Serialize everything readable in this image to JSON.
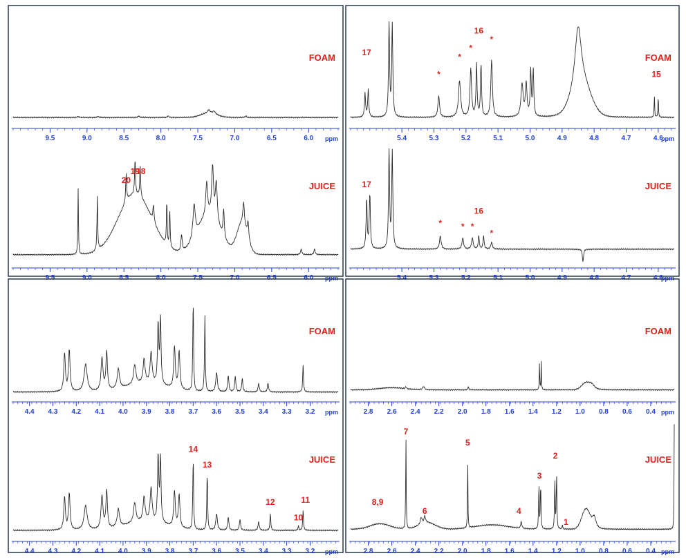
{
  "colors": {
    "spectrum": "#2b2b2b",
    "axis": "#1f3fd1",
    "label": "#e0201b",
    "frame": "#1a2a4a"
  },
  "chart_data": [
    {
      "id": "aromatic",
      "type": "line",
      "xlabel": "ppm",
      "xlim": [
        10.0,
        5.6
      ],
      "ticks": [
        9.5,
        9.0,
        8.5,
        8.0,
        7.5,
        7.0,
        6.5,
        6.0
      ],
      "tick_labels": [
        "9.5",
        "9.0",
        "8.5",
        "8.0",
        "7.5",
        "7.0",
        "6.5",
        "6.0"
      ],
      "series": [
        {
          "name": "FOAM",
          "baseline": 0.05,
          "humps": [
            {
              "x": 7.35,
              "w": 0.15,
              "h": 0.04
            }
          ],
          "peaks": [
            {
              "x": 9.12,
              "h": 0.01,
              "w": 0.01
            },
            {
              "x": 8.85,
              "h": 0.01,
              "w": 0.01
            },
            {
              "x": 8.3,
              "h": 0.015,
              "w": 0.01
            },
            {
              "x": 7.9,
              "h": 0.015,
              "w": 0.01
            },
            {
              "x": 7.35,
              "h": 0.03,
              "w": 0.02
            },
            {
              "x": 7.28,
              "h": 0.025,
              "w": 0.02
            },
            {
              "x": 6.85,
              "h": 0.015,
              "w": 0.01
            }
          ],
          "labels": []
        },
        {
          "name": "JUICE",
          "baseline": 0.07,
          "humps": [
            {
              "x": 8.35,
              "w": 0.32,
              "h": 0.55
            },
            {
              "x": 7.35,
              "w": 0.22,
              "h": 0.35
            },
            {
              "x": 6.9,
              "w": 0.1,
              "h": 0.28
            }
          ],
          "peaks": [
            {
              "x": 9.12,
              "h": 0.6,
              "w": 0.005
            },
            {
              "x": 8.86,
              "h": 0.5,
              "w": 0.006
            },
            {
              "x": 8.47,
              "h": 0.25,
              "w": 0.008
            },
            {
              "x": 8.35,
              "h": 0.32,
              "w": 0.007
            },
            {
              "x": 8.28,
              "h": 0.28,
              "w": 0.007
            },
            {
              "x": 8.1,
              "h": 0.15,
              "w": 0.01
            },
            {
              "x": 7.92,
              "h": 0.4,
              "w": 0.006
            },
            {
              "x": 7.88,
              "h": 0.35,
              "w": 0.006
            },
            {
              "x": 7.72,
              "h": 0.15,
              "w": 0.01
            },
            {
              "x": 7.55,
              "h": 0.3,
              "w": 0.02
            },
            {
              "x": 7.38,
              "h": 0.3,
              "w": 0.015
            },
            {
              "x": 7.3,
              "h": 0.45,
              "w": 0.015
            },
            {
              "x": 7.25,
              "h": 0.35,
              "w": 0.015
            },
            {
              "x": 7.15,
              "h": 0.25,
              "w": 0.01
            },
            {
              "x": 6.88,
              "h": 0.2,
              "w": 0.012
            },
            {
              "x": 6.82,
              "h": 0.15,
              "w": 0.012
            },
            {
              "x": 6.1,
              "h": 0.05,
              "w": 0.01
            },
            {
              "x": 5.92,
              "h": 0.05,
              "w": 0.01
            }
          ],
          "labels": [
            {
              "text": "20",
              "x": 8.47,
              "h": 0.72
            },
            {
              "text": "19",
              "x": 8.35,
              "h": 0.8
            },
            {
              "text": "18",
              "x": 8.27,
              "h": 0.8
            }
          ]
        }
      ]
    },
    {
      "id": "anomeric",
      "type": "line",
      "xlabel": "ppm",
      "xlim": [
        5.56,
        4.55
      ],
      "ticks": [
        5.4,
        5.3,
        5.2,
        5.1,
        5.0,
        4.9,
        4.8,
        4.7,
        4.6
      ],
      "tick_labels": [
        "5.4",
        "5.3",
        "5.2",
        "5.1",
        "5.0",
        "4.9",
        "4.8",
        "4.7",
        "4.6"
      ],
      "series": [
        {
          "name": "FOAM",
          "baseline": 0.05,
          "humps": [
            {
              "x": 4.84,
              "w": 0.04,
              "h": 0.3
            }
          ],
          "peaks": [
            {
              "x": 5.515,
              "h": 0.22,
              "w": 0.002
            },
            {
              "x": 5.505,
              "h": 0.25,
              "w": 0.002
            },
            {
              "x": 5.44,
              "h": 0.85,
              "w": 0.002
            },
            {
              "x": 5.43,
              "h": 0.85,
              "w": 0.002
            },
            {
              "x": 5.285,
              "h": 0.2,
              "w": 0.003
            },
            {
              "x": 5.22,
              "h": 0.33,
              "w": 0.004
            },
            {
              "x": 5.185,
              "h": 0.44,
              "w": 0.003
            },
            {
              "x": 5.167,
              "h": 0.48,
              "w": 0.002
            },
            {
              "x": 5.153,
              "h": 0.48,
              "w": 0.002
            },
            {
              "x": 5.12,
              "h": 0.52,
              "w": 0.003
            },
            {
              "x": 5.025,
              "h": 0.3,
              "w": 0.004
            },
            {
              "x": 5.012,
              "h": 0.3,
              "w": 0.003
            },
            {
              "x": 4.998,
              "h": 0.42,
              "w": 0.002
            },
            {
              "x": 4.99,
              "h": 0.42,
              "w": 0.002
            },
            {
              "x": 4.85,
              "h": 0.55,
              "w": 0.012
            },
            {
              "x": 4.612,
              "h": 0.2,
              "w": 0.001
            },
            {
              "x": 4.6,
              "h": 0.2,
              "w": 0.001
            }
          ],
          "labels": [
            {
              "text": "17",
              "x": 5.51,
              "h": 0.62
            },
            {
              "text": "*",
              "x": 5.285,
              "h": 0.42
            },
            {
              "text": "*",
              "x": 5.22,
              "h": 0.58
            },
            {
              "text": "*",
              "x": 5.185,
              "h": 0.66
            },
            {
              "text": "16",
              "x": 5.16,
              "h": 0.82
            },
            {
              "text": "*",
              "x": 5.12,
              "h": 0.74
            },
            {
              "text": "15",
              "x": 4.606,
              "h": 0.42
            }
          ]
        },
        {
          "name": "JUICE",
          "baseline": 0.12,
          "humps": [],
          "peaks": [
            {
              "x": 5.51,
              "h": 0.45,
              "w": 0.002
            },
            {
              "x": 5.5,
              "h": 0.5,
              "w": 0.002
            },
            {
              "x": 5.44,
              "h": 0.88,
              "w": 0.002
            },
            {
              "x": 5.43,
              "h": 0.88,
              "w": 0.002
            },
            {
              "x": 5.28,
              "h": 0.12,
              "w": 0.003
            },
            {
              "x": 5.21,
              "h": 0.1,
              "w": 0.003
            },
            {
              "x": 5.18,
              "h": 0.1,
              "w": 0.003
            },
            {
              "x": 5.16,
              "h": 0.12,
              "w": 0.002
            },
            {
              "x": 5.145,
              "h": 0.12,
              "w": 0.002
            },
            {
              "x": 5.12,
              "h": 0.06,
              "w": 0.003
            },
            {
              "x": 4.835,
              "h": -0.12,
              "w": 0.002
            }
          ],
          "labels": [
            {
              "text": "17",
              "x": 5.51,
              "h": 0.68
            },
            {
              "text": "*",
              "x": 5.28,
              "h": 0.33
            },
            {
              "text": "*",
              "x": 5.21,
              "h": 0.3
            },
            {
              "text": "*",
              "x": 5.18,
              "h": 0.3
            },
            {
              "text": "16",
              "x": 5.16,
              "h": 0.44
            },
            {
              "text": "*",
              "x": 5.12,
              "h": 0.24
            }
          ]
        }
      ]
    },
    {
      "id": "sugar",
      "type": "line",
      "xlabel": "ppm",
      "xlim": [
        4.47,
        3.08
      ],
      "ticks": [
        4.4,
        4.3,
        4.2,
        4.1,
        4.0,
        3.9,
        3.8,
        3.7,
        3.6,
        3.5,
        3.4,
        3.3,
        3.2
      ],
      "tick_labels": [
        "4.4",
        "4.3",
        "4.2",
        "4.1",
        "4.0",
        "3.9",
        "3.8",
        "3.7",
        "3.6",
        "3.5",
        "3.4",
        "3.3",
        "3.2"
      ],
      "series": [
        {
          "name": "FOAM",
          "baseline": 0.04,
          "humps": [
            {
              "x": 3.9,
              "w": 0.12,
              "h": 0.08
            }
          ],
          "peaks": [
            {
              "x": 4.25,
              "h": 0.35,
              "w": 0.004
            },
            {
              "x": 4.23,
              "h": 0.38,
              "w": 0.004
            },
            {
              "x": 4.16,
              "h": 0.25,
              "w": 0.008
            },
            {
              "x": 4.09,
              "h": 0.3,
              "w": 0.005
            },
            {
              "x": 4.07,
              "h": 0.35,
              "w": 0.004
            },
            {
              "x": 4.02,
              "h": 0.18,
              "w": 0.006
            },
            {
              "x": 3.95,
              "h": 0.18,
              "w": 0.006
            },
            {
              "x": 3.91,
              "h": 0.22,
              "w": 0.005
            },
            {
              "x": 3.88,
              "h": 0.28,
              "w": 0.005
            },
            {
              "x": 3.85,
              "h": 0.55,
              "w": 0.003
            },
            {
              "x": 3.84,
              "h": 0.6,
              "w": 0.003
            },
            {
              "x": 3.78,
              "h": 0.38,
              "w": 0.004
            },
            {
              "x": 3.76,
              "h": 0.35,
              "w": 0.004
            },
            {
              "x": 3.7,
              "h": 0.85,
              "w": 0.002
            },
            {
              "x": 3.65,
              "h": 0.7,
              "w": 0.002
            },
            {
              "x": 3.6,
              "h": 0.18,
              "w": 0.004
            },
            {
              "x": 3.55,
              "h": 0.15,
              "w": 0.003
            },
            {
              "x": 3.52,
              "h": 0.14,
              "w": 0.003
            },
            {
              "x": 3.49,
              "h": 0.12,
              "w": 0.003
            },
            {
              "x": 3.42,
              "h": 0.08,
              "w": 0.003
            },
            {
              "x": 3.38,
              "h": 0.08,
              "w": 0.003
            },
            {
              "x": 3.23,
              "h": 0.25,
              "w": 0.002
            }
          ],
          "labels": []
        },
        {
          "name": "JUICE",
          "baseline": 0.05,
          "humps": [
            {
              "x": 3.9,
              "w": 0.12,
              "h": 0.08
            }
          ],
          "peaks": [
            {
              "x": 4.25,
              "h": 0.3,
              "w": 0.004
            },
            {
              "x": 4.23,
              "h": 0.33,
              "w": 0.004
            },
            {
              "x": 4.16,
              "h": 0.22,
              "w": 0.008
            },
            {
              "x": 4.09,
              "h": 0.3,
              "w": 0.005
            },
            {
              "x": 4.07,
              "h": 0.34,
              "w": 0.004
            },
            {
              "x": 4.02,
              "h": 0.16,
              "w": 0.006
            },
            {
              "x": 3.95,
              "h": 0.18,
              "w": 0.006
            },
            {
              "x": 3.91,
              "h": 0.22,
              "w": 0.005
            },
            {
              "x": 3.88,
              "h": 0.3,
              "w": 0.005
            },
            {
              "x": 3.85,
              "h": 0.6,
              "w": 0.003
            },
            {
              "x": 3.84,
              "h": 0.58,
              "w": 0.003
            },
            {
              "x": 3.78,
              "h": 0.32,
              "w": 0.004
            },
            {
              "x": 3.76,
              "h": 0.3,
              "w": 0.004
            },
            {
              "x": 3.7,
              "h": 0.66,
              "w": 0.002
            },
            {
              "x": 3.64,
              "h": 0.52,
              "w": 0.002
            },
            {
              "x": 3.6,
              "h": 0.15,
              "w": 0.004
            },
            {
              "x": 3.55,
              "h": 0.12,
              "w": 0.003
            },
            {
              "x": 3.5,
              "h": 0.1,
              "w": 0.003
            },
            {
              "x": 3.42,
              "h": 0.08,
              "w": 0.003
            },
            {
              "x": 3.37,
              "h": 0.16,
              "w": 0.002
            },
            {
              "x": 3.25,
              "h": 0.04,
              "w": 0.002
            },
            {
              "x": 3.23,
              "h": 0.18,
              "w": 0.002
            }
          ],
          "labels": [
            {
              "text": "14",
              "x": 3.7,
              "h": 0.76
            },
            {
              "text": "13",
              "x": 3.64,
              "h": 0.62
            },
            {
              "text": "12",
              "x": 3.37,
              "h": 0.28
            },
            {
              "text": "11",
              "x": 3.22,
              "h": 0.3
            },
            {
              "text": "10",
              "x": 3.25,
              "h": 0.14
            }
          ]
        }
      ]
    },
    {
      "id": "aliphatic",
      "type": "line",
      "xlabel": "ppm",
      "xlim": [
        2.95,
        0.2
      ],
      "ticks": [
        2.8,
        2.6,
        2.4,
        2.2,
        2.0,
        1.8,
        1.6,
        1.4,
        1.2,
        1.0,
        0.8,
        0.6,
        0.4
      ],
      "tick_labels": [
        "2.8",
        "2.6",
        "2.4",
        "2.2",
        "2.0",
        "1.8",
        "1.6",
        "1.4",
        "1.2",
        "1.0",
        "0.8",
        "0.6",
        "0.4"
      ],
      "series": [
        {
          "name": "FOAM",
          "baseline": 0.06,
          "humps": [
            {
              "x": 0.95,
              "w": 0.05,
              "h": 0.06
            },
            {
              "x": 2.6,
              "w": 0.15,
              "h": 0.02
            }
          ],
          "peaks": [
            {
              "x": 2.48,
              "h": 0.02,
              "w": 0.005
            },
            {
              "x": 2.33,
              "h": 0.03,
              "w": 0.01
            },
            {
              "x": 1.95,
              "h": 0.03,
              "w": 0.004
            },
            {
              "x": 1.345,
              "h": 0.28,
              "w": 0.002
            },
            {
              "x": 1.33,
              "h": 0.28,
              "w": 0.002
            },
            {
              "x": 0.9,
              "h": 0.04,
              "w": 0.03
            }
          ],
          "labels": []
        },
        {
          "name": "JUICE",
          "baseline": 0.06,
          "humps": [
            {
              "x": 2.7,
              "w": 0.12,
              "h": 0.05
            },
            {
              "x": 2.3,
              "w": 0.1,
              "h": 0.06
            },
            {
              "x": 1.75,
              "w": 0.2,
              "h": 0.04
            },
            {
              "x": 0.95,
              "w": 0.05,
              "h": 0.18
            }
          ],
          "peaks": [
            {
              "x": 2.48,
              "h": 0.85,
              "w": 0.0025
            },
            {
              "x": 2.35,
              "h": 0.06,
              "w": 0.008
            },
            {
              "x": 2.32,
              "h": 0.06,
              "w": 0.008
            },
            {
              "x": 1.955,
              "h": 0.75,
              "w": 0.002
            },
            {
              "x": 1.5,
              "h": 0.06,
              "w": 0.006
            },
            {
              "x": 1.35,
              "h": 0.42,
              "w": 0.003
            },
            {
              "x": 1.335,
              "h": 0.42,
              "w": 0.003
            },
            {
              "x": 1.215,
              "h": 0.44,
              "w": 0.003
            },
            {
              "x": 1.2,
              "h": 0.5,
              "w": 0.003
            },
            {
              "x": 1.15,
              "h": 0.04,
              "w": 0.003
            },
            {
              "x": 0.88,
              "h": 0.1,
              "w": 0.02
            },
            {
              "x": 0.2,
              "h": 0.95,
              "w": 0.002
            }
          ],
          "labels": [
            {
              "text": "8,9",
              "x": 2.72,
              "h": 0.28
            },
            {
              "text": "7",
              "x": 2.48,
              "h": 0.92
            },
            {
              "text": "6",
              "x": 2.32,
              "h": 0.2
            },
            {
              "text": "5",
              "x": 1.955,
              "h": 0.82
            },
            {
              "text": "4",
              "x": 1.52,
              "h": 0.2
            },
            {
              "text": "3",
              "x": 1.345,
              "h": 0.52
            },
            {
              "text": "2",
              "x": 1.21,
              "h": 0.7
            },
            {
              "text": "1",
              "x": 1.12,
              "h": 0.1
            }
          ]
        }
      ]
    }
  ]
}
